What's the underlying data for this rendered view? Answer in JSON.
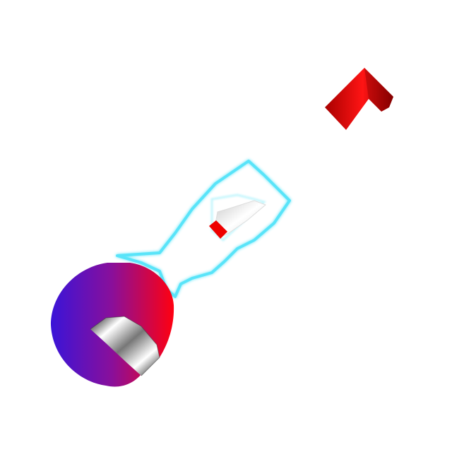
{
  "scene": {
    "background": "#ffffff",
    "objects": [
      {
        "name": "red-arrow-marker",
        "icon": "chevron-arrow-icon",
        "colors": [
          "#a80000",
          "#ff1414",
          "#8a0000"
        ]
      },
      {
        "name": "ghost-outline-shape",
        "icon": "glowing-outline-icon",
        "glow_color": "#3ee0f8"
      },
      {
        "name": "silver-blade",
        "icon": "blade-icon",
        "colors": [
          "#c9c9c9",
          "#ffffff",
          "#d8d8d8"
        ]
      },
      {
        "name": "red-band",
        "icon": "band-icon",
        "color": "#ee0000"
      },
      {
        "name": "gradient-disc",
        "icon": "disc-icon",
        "colors": [
          "#3a14d8",
          "#8a0f9a",
          "#ff0010"
        ]
      },
      {
        "name": "striped-chrome-cylinder",
        "icon": "striped-cylinder-icon",
        "colors": [
          "#111111",
          "#ffffff",
          "#777777"
        ]
      }
    ]
  }
}
